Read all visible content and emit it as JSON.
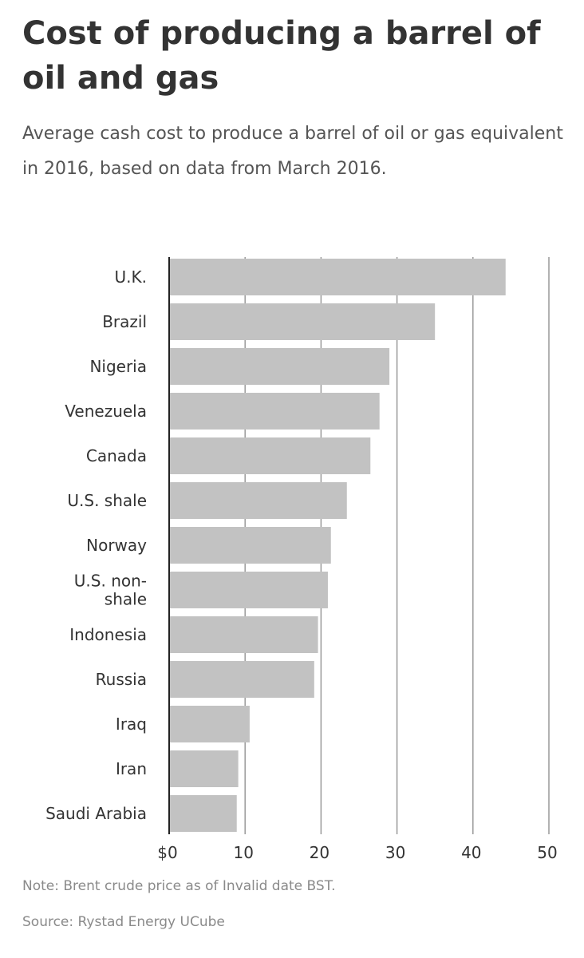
{
  "header": {
    "title": "Cost of producing a barrel of oil and gas",
    "subtitle": "Average cash cost to produce a barrel of oil or gas equivalent in 2016, based on data from March 2016."
  },
  "footer": {
    "note": "Note: Brent crude price as of Invalid date BST.",
    "source": "Source: Rystad Energy UCube"
  },
  "chart_data": {
    "type": "bar",
    "orientation": "horizontal",
    "title": "Cost of producing a barrel of oil and gas",
    "subtitle": "Average cash cost to produce a barrel of oil or gas equivalent in 2016, based on data from March 2016.",
    "categories": [
      "U.K.",
      "Brazil",
      "Nigeria",
      "Venezuela",
      "Canada",
      "U.S. shale",
      "Norway",
      "U.S. non-shale",
      "Indonesia",
      "Russia",
      "Iraq",
      "Iran",
      "Saudi Arabia"
    ],
    "category_lines": [
      [
        "U.K."
      ],
      [
        "Brazil"
      ],
      [
        "Nigeria"
      ],
      [
        "Venezuela"
      ],
      [
        "Canada"
      ],
      [
        "U.S. shale"
      ],
      [
        "Norway"
      ],
      [
        "U.S. non-",
        "shale"
      ],
      [
        "Indonesia"
      ],
      [
        "Russia"
      ],
      [
        "Iraq"
      ],
      [
        "Iran"
      ],
      [
        "Saudi Arabia"
      ]
    ],
    "values": [
      44.3,
      35,
      29,
      27.7,
      26.5,
      23.4,
      21.3,
      20.9,
      19.6,
      19.1,
      10.6,
      9.1,
      8.9
    ],
    "xlim": [
      0,
      50
    ],
    "x_ticks": [
      0,
      10,
      20,
      30,
      40,
      50
    ],
    "x_tick_labels": [
      "$0",
      "10",
      "20",
      "30",
      "40",
      "50"
    ],
    "grid": true,
    "bar_color": "#c2c2c2",
    "grid_color": "#999999",
    "axis_color": "#222222"
  }
}
